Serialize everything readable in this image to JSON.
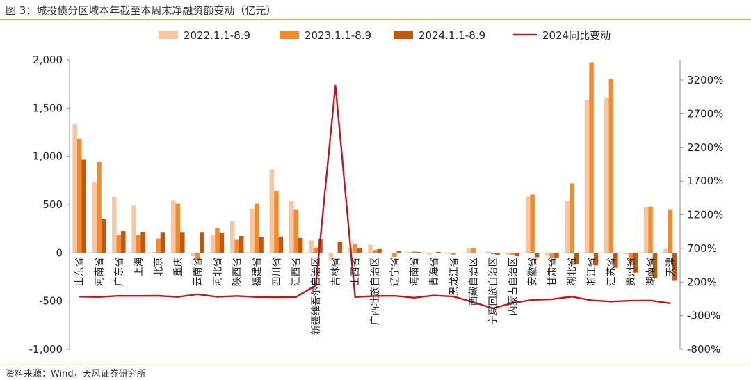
{
  "title": "图 3：城投债分区域本年截至本周末净融资额变动（亿元）",
  "source": "资料来源：Wind，天风证券研究所",
  "colors": {
    "s2022": "#f7c6a0",
    "s2023": "#f28a2e",
    "s2024": "#c0580f",
    "line": "#c0161c"
  },
  "chart_data": {
    "type": "bar",
    "categories": [
      "山东省",
      "河南省",
      "广东省",
      "上海",
      "北京",
      "重庆",
      "云南省",
      "河北省",
      "陕西省",
      "福建省",
      "四川省",
      "江西省",
      "新疆维吾尔自治区",
      "吉林省",
      "山西省",
      "广西壮族自治区",
      "辽宁省",
      "海南省",
      "青海省",
      "黑龙江省",
      "西藏自治区",
      "宁夏回族自治区",
      "内蒙古自治区",
      "安徽省",
      "甘肃省",
      "湖北省",
      "浙江省",
      "江苏省",
      "贵州省",
      "湖南省",
      "天津"
    ],
    "series": [
      {
        "name": "2022.1.1-8.9",
        "axis": "left",
        "values": [
          1335,
          735,
          580,
          490,
          10,
          540,
          -35,
          185,
          330,
          460,
          865,
          535,
          130,
          -70,
          55,
          85,
          0,
          10,
          -20,
          -10,
          45,
          15,
          -25,
          585,
          -30,
          535,
          1590,
          1605,
          -15,
          470,
          40
        ]
      },
      {
        "name": "2023.1.1-8.9",
        "axis": "left",
        "values": [
          1180,
          940,
          185,
          185,
          150,
          510,
          -75,
          255,
          135,
          510,
          645,
          445,
          55,
          0,
          95,
          30,
          -40,
          15,
          0,
          -25,
          45,
          -15,
          -20,
          605,
          -55,
          720,
          1975,
          1800,
          -90,
          480,
          445
        ]
      },
      {
        "name": "2024.1.1-8.9",
        "axis": "left",
        "values": [
          965,
          355,
          225,
          215,
          210,
          210,
          210,
          205,
          175,
          165,
          170,
          155,
          140,
          115,
          45,
          40,
          20,
          10,
          10,
          0,
          0,
          -20,
          -35,
          -45,
          -50,
          -120,
          -130,
          -155,
          -205,
          -265,
          -290
        ]
      },
      {
        "name": "2024同比变动",
        "axis": "right",
        "values": [
          -18,
          -23,
          -5,
          -6,
          -4,
          -22,
          18,
          -20,
          -7,
          -23,
          -25,
          -23,
          150,
          3120,
          -23,
          -8,
          -5,
          -33,
          0,
          -15,
          -100,
          -190,
          -110,
          -65,
          -55,
          -17,
          -72,
          -90,
          -77,
          -75,
          -116
        ]
      }
    ],
    "y_left": {
      "min": -1000,
      "max": 2000,
      "ticks": [
        -1000,
        -500,
        0,
        500,
        1000,
        1500,
        2000
      ],
      "tick_labels": [
        "-1,000",
        "-500",
        "0",
        "500",
        "1,000",
        "1,500",
        "2,000"
      ]
    },
    "y_right": {
      "min": -800,
      "max": 3500,
      "ticks": [
        -800,
        -300,
        200,
        700,
        1200,
        1700,
        2200,
        2700,
        3200
      ],
      "tick_labels": [
        "-800%",
        "-300%",
        "200%",
        "700%",
        "1200%",
        "1700%",
        "2200%",
        "2700%",
        "3200%"
      ]
    },
    "grid": false,
    "legend_position": "top"
  }
}
